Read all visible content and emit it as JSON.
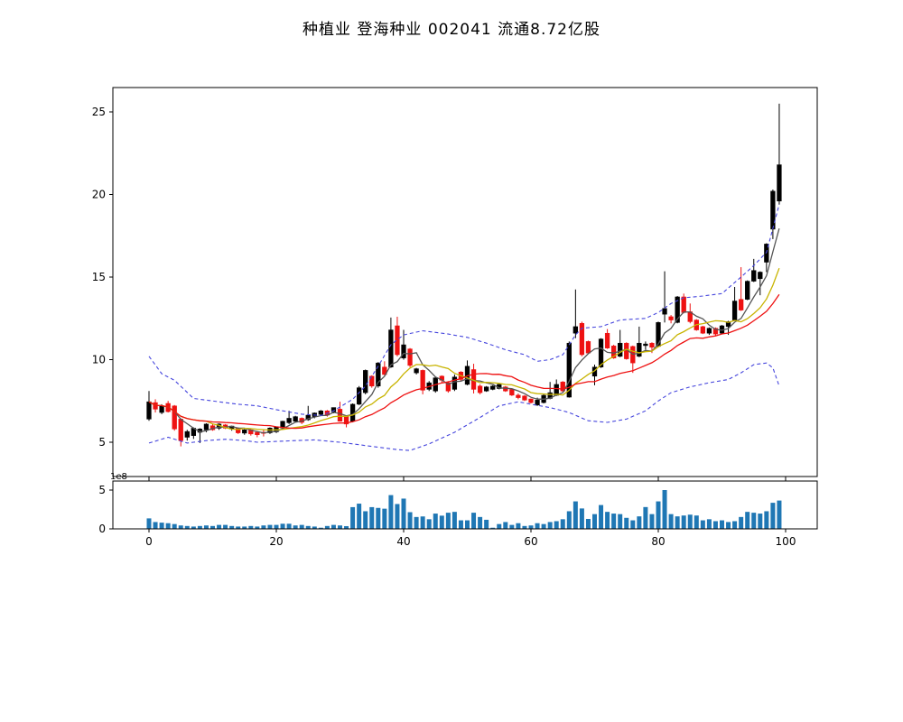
{
  "title": "种植业  登海种业  002041  流通8.72亿股",
  "chart_data": {
    "type": "candlestick",
    "title": "种植业  登海种业  002041  流通8.72亿股",
    "price_axis": {
      "ticks": [
        5,
        10,
        15,
        20,
        25
      ],
      "ylim": [
        2.9,
        26.5
      ]
    },
    "x_axis": {
      "ticks": [
        0,
        20,
        40,
        60,
        80,
        100
      ],
      "xlim": [
        -5.7,
        105
      ]
    },
    "volume_axis": {
      "ticks": [
        0,
        5
      ],
      "offset_label": "1e8",
      "unit": 100000000,
      "ylim": [
        0,
        6.2
      ]
    },
    "legend": "none",
    "grid": false,
    "candles_ohlc": [
      [
        6.4,
        8.1,
        6.3,
        7.45
      ],
      [
        7.4,
        7.6,
        6.8,
        7.0
      ],
      [
        6.8,
        7.3,
        6.7,
        7.2
      ],
      [
        7.35,
        7.5,
        6.8,
        6.85
      ],
      [
        7.2,
        7.25,
        5.7,
        5.8
      ],
      [
        6.4,
        6.45,
        4.75,
        5.1
      ],
      [
        5.3,
        5.75,
        5.1,
        5.65
      ],
      [
        5.4,
        5.9,
        5.2,
        5.85
      ],
      [
        5.6,
        5.85,
        4.95,
        5.8
      ],
      [
        5.75,
        6.15,
        5.6,
        6.1
      ],
      [
        6.0,
        6.1,
        5.7,
        5.75
      ],
      [
        5.85,
        6.15,
        5.75,
        6.1
      ],
      [
        6.05,
        6.1,
        5.8,
        5.85
      ],
      [
        5.8,
        6.0,
        5.7,
        5.98
      ],
      [
        5.85,
        5.9,
        5.5,
        5.57
      ],
      [
        5.55,
        5.8,
        5.45,
        5.75
      ],
      [
        5.75,
        5.8,
        5.4,
        5.5
      ],
      [
        5.6,
        5.65,
        5.3,
        5.45
      ],
      [
        5.6,
        5.75,
        5.35,
        5.55
      ],
      [
        5.57,
        5.9,
        5.5,
        5.86
      ],
      [
        5.63,
        5.95,
        5.55,
        5.93
      ],
      [
        5.86,
        6.3,
        5.8,
        6.27
      ],
      [
        6.18,
        6.9,
        6.1,
        6.45
      ],
      [
        6.27,
        6.6,
        6.2,
        6.55
      ],
      [
        6.45,
        6.5,
        6.1,
        6.2
      ],
      [
        6.36,
        7.2,
        6.3,
        6.64
      ],
      [
        6.55,
        6.8,
        6.45,
        6.77
      ],
      [
        6.68,
        6.95,
        6.6,
        6.9
      ],
      [
        6.9,
        6.95,
        6.55,
        6.64
      ],
      [
        6.83,
        7.1,
        6.75,
        7.1
      ],
      [
        7.0,
        7.45,
        6.25,
        6.27
      ],
      [
        6.55,
        6.6,
        5.9,
        6.1
      ],
      [
        6.27,
        7.35,
        6.2,
        7.3
      ],
      [
        7.3,
        8.4,
        7.25,
        8.3
      ],
      [
        8.0,
        9.4,
        7.9,
        9.35
      ],
      [
        9.0,
        9.05,
        8.3,
        8.4
      ],
      [
        8.4,
        9.85,
        8.3,
        9.8
      ],
      [
        9.55,
        9.9,
        9.05,
        9.1
      ],
      [
        9.55,
        12.55,
        9.5,
        11.8
      ],
      [
        12.05,
        12.6,
        10.2,
        10.3
      ],
      [
        10.1,
        11.8,
        10.0,
        10.9
      ],
      [
        10.65,
        10.7,
        9.55,
        9.65
      ],
      [
        9.2,
        9.5,
        9.1,
        9.45
      ],
      [
        9.35,
        9.4,
        7.9,
        8.15
      ],
      [
        8.2,
        8.7,
        8.1,
        8.6
      ],
      [
        8.1,
        8.95,
        8.0,
        8.9
      ],
      [
        9.0,
        9.05,
        8.6,
        8.75
      ],
      [
        8.6,
        8.7,
        8.0,
        8.1
      ],
      [
        8.2,
        9.1,
        8.1,
        8.95
      ],
      [
        9.25,
        9.3,
        8.7,
        8.8
      ],
      [
        8.5,
        9.95,
        8.45,
        9.6
      ],
      [
        9.4,
        9.75,
        7.95,
        8.2
      ],
      [
        8.4,
        8.5,
        7.9,
        8.0
      ],
      [
        8.1,
        8.4,
        8.05,
        8.35
      ],
      [
        8.2,
        8.45,
        8.15,
        8.4
      ],
      [
        8.25,
        8.55,
        8.2,
        8.5
      ],
      [
        8.35,
        8.4,
        8.05,
        8.1
      ],
      [
        8.2,
        8.25,
        7.8,
        7.85
      ],
      [
        7.85,
        7.95,
        7.6,
        7.7
      ],
      [
        7.8,
        7.85,
        7.5,
        7.55
      ],
      [
        7.62,
        7.65,
        7.35,
        7.4
      ],
      [
        7.25,
        7.7,
        7.2,
        7.55
      ],
      [
        7.4,
        7.9,
        7.35,
        7.84
      ],
      [
        7.65,
        8.65,
        7.6,
        8.0
      ],
      [
        7.84,
        8.8,
        7.8,
        8.5
      ],
      [
        8.65,
        8.7,
        8.05,
        8.1
      ],
      [
        7.73,
        11.1,
        7.7,
        11.0
      ],
      [
        11.6,
        14.25,
        11.3,
        12.0
      ],
      [
        12.2,
        12.3,
        10.2,
        10.3
      ],
      [
        11.1,
        11.15,
        10.35,
        10.4
      ],
      [
        9.0,
        9.7,
        8.45,
        9.55
      ],
      [
        9.55,
        11.3,
        9.5,
        11.25
      ],
      [
        11.6,
        11.85,
        10.65,
        10.7
      ],
      [
        10.83,
        10.9,
        10.05,
        10.1
      ],
      [
        10.2,
        11.8,
        10.15,
        11.0
      ],
      [
        11.0,
        11.05,
        10.0,
        10.05
      ],
      [
        10.8,
        10.85,
        9.2,
        9.8
      ],
      [
        10.2,
        12.0,
        10.15,
        11.0
      ],
      [
        10.85,
        11.1,
        10.6,
        10.95
      ],
      [
        11.0,
        11.05,
        10.4,
        10.75
      ],
      [
        10.8,
        12.3,
        10.75,
        12.25
      ],
      [
        12.75,
        15.35,
        12.25,
        13.1
      ],
      [
        12.6,
        12.7,
        12.2,
        12.4
      ],
      [
        12.25,
        13.85,
        12.2,
        13.8
      ],
      [
        13.8,
        14.0,
        12.8,
        12.85
      ],
      [
        12.9,
        13.4,
        12.2,
        12.3
      ],
      [
        12.4,
        12.45,
        11.75,
        11.8
      ],
      [
        12.0,
        12.05,
        11.55,
        11.6
      ],
      [
        11.6,
        11.95,
        11.5,
        11.9
      ],
      [
        11.9,
        11.95,
        11.45,
        11.55
      ],
      [
        11.6,
        12.1,
        11.55,
        12.05
      ],
      [
        12.0,
        12.35,
        11.5,
        12.3
      ],
      [
        12.4,
        14.4,
        12.35,
        13.55
      ],
      [
        13.65,
        15.6,
        12.95,
        13.0
      ],
      [
        13.65,
        14.8,
        13.6,
        14.75
      ],
      [
        14.75,
        16.1,
        14.7,
        15.4
      ],
      [
        14.9,
        15.35,
        13.9,
        15.3
      ],
      [
        15.9,
        17.05,
        15.3,
        17.0
      ],
      [
        17.9,
        20.3,
        17.3,
        20.2
      ],
      [
        19.6,
        25.5,
        19.4,
        21.8
      ]
    ],
    "volumes_1e8": [
      1.35,
      0.88,
      0.8,
      0.73,
      0.62,
      0.44,
      0.37,
      0.3,
      0.37,
      0.44,
      0.37,
      0.51,
      0.51,
      0.37,
      0.3,
      0.3,
      0.37,
      0.3,
      0.44,
      0.51,
      0.51,
      0.66,
      0.66,
      0.44,
      0.51,
      0.37,
      0.3,
      0.15,
      0.37,
      0.51,
      0.44,
      0.35,
      2.8,
      3.25,
      2.27,
      2.8,
      2.7,
      2.6,
      4.35,
      3.2,
      3.9,
      2.15,
      1.53,
      1.6,
      1.24,
      1.97,
      1.7,
      2.08,
      2.19,
      1.1,
      1.1,
      2.08,
      1.53,
      1.17,
      0.15,
      0.62,
      0.88,
      0.51,
      0.73,
      0.37,
      0.44,
      0.73,
      0.62,
      0.88,
      0.99,
      1.24,
      2.27,
      3.54,
      2.63,
      1.28,
      1.9,
      3.07,
      2.19,
      1.97,
      1.9,
      1.42,
      1.1,
      1.61,
      2.81,
      1.9,
      3.54,
      5.0,
      1.9,
      1.61,
      1.72,
      1.83,
      1.72,
      1.1,
      1.24,
      0.99,
      1.1,
      0.88,
      0.99,
      1.53,
      2.19,
      2.08,
      1.97,
      2.27,
      3.36,
      3.65
    ],
    "overlays": {
      "ma_periods": [
        5,
        10,
        20
      ],
      "bollinger_upper": [
        [
          0,
          10.2
        ],
        [
          2,
          9.15
        ],
        [
          4,
          8.75
        ],
        [
          7,
          7.65
        ],
        [
          11,
          7.45
        ],
        [
          14,
          7.3
        ],
        [
          17,
          7.2
        ],
        [
          21,
          6.9
        ],
        [
          24,
          6.7
        ],
        [
          27,
          6.62
        ],
        [
          29,
          6.9
        ],
        [
          32,
          7.6
        ],
        [
          34,
          8.4
        ],
        [
          36,
          9.6
        ],
        [
          38,
          10.9
        ],
        [
          40,
          11.5
        ],
        [
          43,
          11.75
        ],
        [
          47,
          11.55
        ],
        [
          50,
          11.35
        ],
        [
          53,
          11.0
        ],
        [
          56,
          10.6
        ],
        [
          59,
          10.3
        ],
        [
          61,
          9.9
        ],
        [
          63,
          10.0
        ],
        [
          65,
          10.3
        ],
        [
          67,
          11.5
        ],
        [
          68,
          11.9
        ],
        [
          71,
          12.0
        ],
        [
          74,
          12.4
        ],
        [
          78,
          12.5
        ],
        [
          80,
          12.85
        ],
        [
          82,
          13.4
        ],
        [
          84,
          13.75
        ],
        [
          87,
          13.85
        ],
        [
          90,
          14.0
        ],
        [
          93,
          15.0
        ],
        [
          95,
          15.7
        ],
        [
          97,
          16.5
        ],
        [
          99,
          19.4
        ]
      ],
      "bollinger_lower": [
        [
          0,
          4.95
        ],
        [
          3,
          5.3
        ],
        [
          6,
          4.95
        ],
        [
          9,
          5.1
        ],
        [
          12,
          5.18
        ],
        [
          15,
          5.1
        ],
        [
          17,
          5.0
        ],
        [
          20,
          5.05
        ],
        [
          23,
          5.1
        ],
        [
          26,
          5.14
        ],
        [
          30,
          5.0
        ],
        [
          33,
          4.85
        ],
        [
          36,
          4.7
        ],
        [
          39,
          4.55
        ],
        [
          41,
          4.5
        ],
        [
          44,
          4.9
        ],
        [
          48,
          5.6
        ],
        [
          52,
          6.5
        ],
        [
          55,
          7.2
        ],
        [
          58,
          7.45
        ],
        [
          60,
          7.3
        ],
        [
          63,
          7.1
        ],
        [
          66,
          6.8
        ],
        [
          69,
          6.3
        ],
        [
          72,
          6.2
        ],
        [
          75,
          6.4
        ],
        [
          78,
          6.9
        ],
        [
          80,
          7.5
        ],
        [
          82,
          8.0
        ],
        [
          85,
          8.35
        ],
        [
          88,
          8.6
        ],
        [
          91,
          8.8
        ],
        [
          93,
          9.2
        ],
        [
          95,
          9.7
        ],
        [
          97,
          9.8
        ],
        [
          98,
          9.5
        ],
        [
          99,
          8.4
        ]
      ]
    },
    "colors": {
      "up": "#000000",
      "down": "#ee1111",
      "ma_fast": "#555555",
      "ma_mid": "#c8b400",
      "ma_slow": "#ee1111",
      "band": "#4646dd",
      "volume": "#1f77b4",
      "axis": "#000000",
      "background": "#ffffff"
    }
  }
}
